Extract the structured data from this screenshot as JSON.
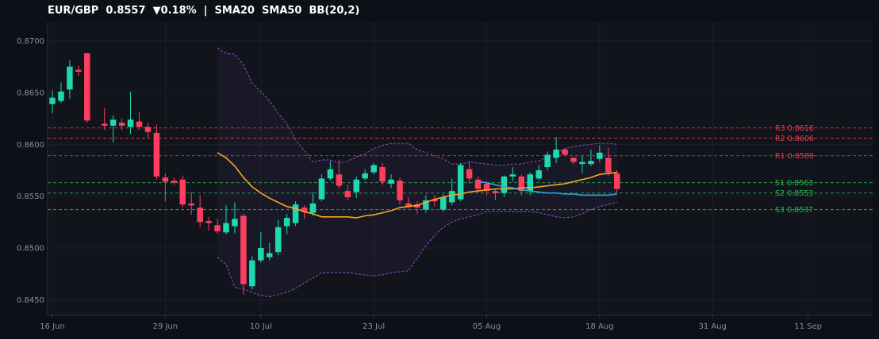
{
  "title": "EUR/GBP  0.8557  ▼0.18%  |  SMA20  SMA50  BB(20,2)",
  "colors": {
    "background": "#0d1017",
    "plot_bg": "#11141b",
    "up": "#1ed8b0",
    "down": "#ff3d5e",
    "sma20": "#f5a623",
    "sma50": "#29a8e0",
    "bollinger": "#8a4fc9",
    "resistance": "#e0404f",
    "support": "#2bb54f",
    "grid": "#1b1f27",
    "text": "#8a8f98"
  },
  "chart_data": {
    "type": "candlestick",
    "title": "EUR/GBP  0.8557  ▼0.18%  |  SMA20  SMA50  BB(20,2)",
    "ylim": [
      0.8435,
      0.8718
    ],
    "y_ticks": [
      "0.8450",
      "0.8500",
      "0.8550",
      "0.8600",
      "0.8650",
      "0.8700"
    ],
    "x_ticks": [
      {
        "label": "16 Jun",
        "index": 0
      },
      {
        "label": "29 Jun",
        "index": 13
      },
      {
        "label": "10 Jul",
        "index": 24
      },
      {
        "label": "23 Jul",
        "index": 37
      },
      {
        "label": "05 Aug",
        "index": 50
      },
      {
        "label": "18 Aug",
        "index": 63
      },
      {
        "label": "31 Aug",
        "index": 76
      },
      {
        "label": "11 Sep",
        "index": 87
      }
    ],
    "x_range": [
      -0.5,
      103
    ],
    "grid": true,
    "candles": [
      [
        0.8639,
        0.8645,
        0.863,
        0.8652
      ],
      [
        0.8642,
        0.8651,
        0.864,
        0.866
      ],
      [
        0.8653,
        0.8675,
        0.8644,
        0.8681
      ],
      [
        0.8672,
        0.867,
        0.8666,
        0.8676
      ],
      [
        0.8688,
        0.8623,
        0.8621,
        0.8688
      ],
      [
        0.862,
        0.8618,
        0.8614,
        0.8635
      ],
      [
        0.8618,
        0.8624,
        0.8602,
        0.8628
      ],
      [
        0.8621,
        0.8618,
        0.8614,
        0.8625
      ],
      [
        0.8617,
        0.8624,
        0.861,
        0.8651
      ],
      [
        0.8622,
        0.8617,
        0.8614,
        0.8631
      ],
      [
        0.8617,
        0.8612,
        0.8606,
        0.8621
      ],
      [
        0.8611,
        0.8569,
        0.8566,
        0.8619
      ],
      [
        0.8568,
        0.8564,
        0.8545,
        0.8572
      ],
      [
        0.8565,
        0.8563,
        0.8561,
        0.8568
      ],
      [
        0.8566,
        0.8542,
        0.8539,
        0.857
      ],
      [
        0.8543,
        0.8541,
        0.8532,
        0.8554
      ],
      [
        0.8539,
        0.8525,
        0.852,
        0.8551
      ],
      [
        0.8526,
        0.8524,
        0.8517,
        0.853
      ],
      [
        0.8522,
        0.8516,
        0.8514,
        0.8528
      ],
      [
        0.8515,
        0.8524,
        0.8513,
        0.8541
      ],
      [
        0.8521,
        0.8528,
        0.8514,
        0.8544
      ],
      [
        0.8531,
        0.8465,
        0.8455,
        0.8533
      ],
      [
        0.8463,
        0.8488,
        0.846,
        0.8492
      ],
      [
        0.8488,
        0.85,
        0.8486,
        0.8515
      ],
      [
        0.8491,
        0.8495,
        0.8488,
        0.8505
      ],
      [
        0.8496,
        0.852,
        0.8493,
        0.8527
      ],
      [
        0.8521,
        0.8529,
        0.8513,
        0.8533
      ],
      [
        0.8524,
        0.8542,
        0.8521,
        0.8545
      ],
      [
        0.8539,
        0.8535,
        0.8528,
        0.8541
      ],
      [
        0.8534,
        0.8543,
        0.8531,
        0.8554
      ],
      [
        0.8547,
        0.8567,
        0.8545,
        0.8571
      ],
      [
        0.8567,
        0.8576,
        0.8565,
        0.8584
      ],
      [
        0.8571,
        0.856,
        0.8557,
        0.8585
      ],
      [
        0.8555,
        0.8549,
        0.8546,
        0.8561
      ],
      [
        0.8554,
        0.8566,
        0.8548,
        0.8569
      ],
      [
        0.8567,
        0.8572,
        0.8565,
        0.8576
      ],
      [
        0.8573,
        0.858,
        0.8571,
        0.8582
      ],
      [
        0.8578,
        0.8564,
        0.8561,
        0.8582
      ],
      [
        0.8562,
        0.8566,
        0.8558,
        0.8571
      ],
      [
        0.8565,
        0.8546,
        0.8542,
        0.8568
      ],
      [
        0.8543,
        0.854,
        0.8538,
        0.8549
      ],
      [
        0.8542,
        0.8539,
        0.8533,
        0.8545
      ],
      [
        0.8537,
        0.8546,
        0.8534,
        0.8551
      ],
      [
        0.8547,
        0.8545,
        0.854,
        0.8551
      ],
      [
        0.8537,
        0.8549,
        0.8535,
        0.8552
      ],
      [
        0.8544,
        0.8555,
        0.8541,
        0.8567
      ],
      [
        0.8547,
        0.858,
        0.8545,
        0.8582
      ],
      [
        0.8576,
        0.8567,
        0.8562,
        0.8584
      ],
      [
        0.8566,
        0.8557,
        0.8553,
        0.8569
      ],
      [
        0.8562,
        0.8555,
        0.8551,
        0.8564
      ],
      [
        0.8555,
        0.8553,
        0.8546,
        0.8557
      ],
      [
        0.8553,
        0.8569,
        0.8549,
        0.857
      ],
      [
        0.8569,
        0.8571,
        0.8564,
        0.8578
      ],
      [
        0.8569,
        0.8555,
        0.8551,
        0.8571
      ],
      [
        0.8555,
        0.8571,
        0.8551,
        0.8573
      ],
      [
        0.8567,
        0.8575,
        0.8565,
        0.858
      ],
      [
        0.8578,
        0.859,
        0.8575,
        0.8593
      ],
      [
        0.8587,
        0.8595,
        0.8582,
        0.8607
      ],
      [
        0.8595,
        0.859,
        0.8589,
        0.8596
      ],
      [
        0.8587,
        0.8583,
        0.8581,
        0.8588
      ],
      [
        0.8581,
        0.8583,
        0.8572,
        0.8589
      ],
      [
        0.8581,
        0.8584,
        0.8579,
        0.8595
      ],
      [
        0.8586,
        0.8592,
        0.8583,
        0.8599
      ],
      [
        0.8587,
        0.8573,
        0.857,
        0.8597
      ],
      [
        0.8572,
        0.8557,
        0.8553,
        0.8575
      ]
    ],
    "candle_x": [
      0,
      1,
      2,
      3,
      4,
      5,
      6,
      7,
      8,
      9,
      10,
      11,
      12,
      13,
      14,
      15,
      16,
      17,
      18,
      19,
      20,
      21,
      22,
      23,
      24,
      25,
      26,
      27,
      28,
      29,
      30,
      31,
      32,
      33,
      34,
      35,
      36,
      37,
      38,
      39,
      40,
      41,
      42,
      43,
      44,
      45,
      46,
      47,
      48,
      49,
      50,
      51,
      52,
      53,
      54,
      55,
      56,
      57,
      58,
      59,
      60,
      61,
      62,
      63,
      64
    ],
    "candle_x_real": [
      0,
      1,
      2,
      3,
      4,
      6,
      7,
      8,
      9,
      10,
      11,
      12,
      13,
      14,
      15,
      16,
      17,
      18,
      19,
      20,
      21,
      22,
      23,
      24,
      25,
      26,
      27,
      28,
      29,
      30,
      31,
      32,
      33,
      34,
      35,
      36,
      37,
      38,
      39,
      40,
      41,
      42,
      43,
      44,
      45,
      46,
      47,
      48,
      49,
      50,
      51,
      52,
      53,
      54,
      55,
      56,
      57,
      58,
      59,
      60,
      61,
      62,
      63,
      64,
      65
    ],
    "sma20": {
      "name": "SMA20",
      "start_index": 19,
      "values": [
        0.8592,
        0.8587,
        0.8579,
        0.8568,
        0.8559,
        0.8553,
        0.8548,
        0.8544,
        0.854,
        0.8538,
        0.8535,
        0.8533,
        0.853,
        0.853,
        0.853,
        0.853,
        0.8529,
        0.8531,
        0.8532,
        0.8534,
        0.8536,
        0.8539,
        0.854,
        0.8541,
        0.8544,
        0.8547,
        0.8549,
        0.8551,
        0.8552,
        0.8554,
        0.8555,
        0.8556,
        0.8557,
        0.8557,
        0.8557,
        0.8558,
        0.8558,
        0.8559,
        0.856,
        0.8561,
        0.8562,
        0.8564,
        0.8566,
        0.8568,
        0.8571,
        0.8572,
        0.8573
      ]
    },
    "sma50": {
      "name": "SMA50",
      "start_index": 49,
      "values": [
        0.8564,
        0.8563,
        0.8561,
        0.8559,
        0.8558,
        0.8556,
        0.8555,
        0.8554,
        0.8553,
        0.8553,
        0.8552,
        0.8552,
        0.8551,
        0.8551,
        0.8551,
        0.8551,
        0.8552
      ]
    },
    "bollinger": {
      "name": "BB(20,2)",
      "start_index": 19,
      "upper": [
        0.8693,
        0.8688,
        0.8687,
        0.8677,
        0.8659,
        0.8651,
        0.8642,
        0.863,
        0.862,
        0.8605,
        0.8594,
        0.8583,
        0.8585,
        0.8585,
        0.8582,
        0.8584,
        0.8588,
        0.8591,
        0.8596,
        0.8599,
        0.8601,
        0.8601,
        0.8601,
        0.8595,
        0.8592,
        0.8589,
        0.8586,
        0.8581,
        0.8581,
        0.8583,
        0.8582,
        0.8581,
        0.858,
        0.858,
        0.8581,
        0.8581,
        0.8583,
        0.8584,
        0.8588,
        0.8592,
        0.8596,
        0.8598,
        0.8599,
        0.86,
        0.8601,
        0.8601,
        0.86
      ],
      "lower": [
        0.8491,
        0.8484,
        0.8462,
        0.846,
        0.8457,
        0.8454,
        0.8453,
        0.8455,
        0.8457,
        0.8461,
        0.8466,
        0.8471,
        0.8476,
        0.8476,
        0.8476,
        0.8476,
        0.8475,
        0.8474,
        0.8473,
        0.8474,
        0.8476,
        0.8477,
        0.8478,
        0.849,
        0.8502,
        0.8512,
        0.852,
        0.8525,
        0.8528,
        0.853,
        0.8532,
        0.8535,
        0.8535,
        0.8535,
        0.8535,
        0.8535,
        0.8535,
        0.8534,
        0.8532,
        0.853,
        0.8529,
        0.853,
        0.8533,
        0.8537,
        0.854,
        0.8542,
        0.8544
      ]
    },
    "levels": [
      {
        "name": "R3",
        "value": 0.8616,
        "kind": "resistance",
        "label": "R3 0.8616"
      },
      {
        "name": "R2",
        "value": 0.8606,
        "kind": "resistance",
        "label": "R2 0.8606"
      },
      {
        "name": "R1",
        "value": 0.8589,
        "kind": "resistance",
        "label": "R1 0.8589"
      },
      {
        "name": "S1",
        "value": 0.8563,
        "kind": "support",
        "label": "S1 0.8563"
      },
      {
        "name": "S2",
        "value": 0.8553,
        "kind": "support",
        "label": "S2 0.8553"
      },
      {
        "name": "S3",
        "value": 0.8537,
        "kind": "support",
        "label": "S3 0.8537"
      }
    ]
  }
}
